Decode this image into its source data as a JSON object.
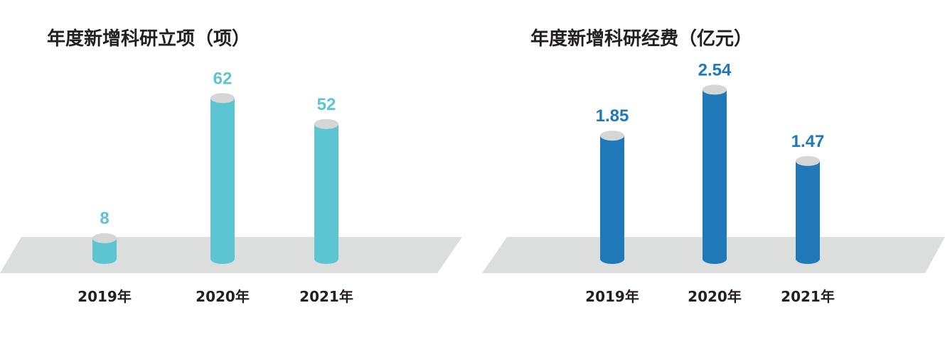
{
  "chart_data": [
    {
      "type": "bar",
      "title": "年度新增科研立项（项）",
      "categories": [
        "2019年",
        "2020年",
        "2021年"
      ],
      "values": [
        8,
        62,
        52
      ],
      "value_labels": [
        "8",
        "62",
        "52"
      ],
      "ylim": [
        0,
        70
      ],
      "grid": false,
      "color": "#5dc4d2"
    },
    {
      "type": "bar",
      "title": "年度新增科研经费（亿元）",
      "categories": [
        "2019年",
        "2020年",
        "2021年"
      ],
      "values": [
        1.85,
        2.54,
        1.47
      ],
      "value_labels": [
        "1.85",
        "2.54",
        "1.47"
      ],
      "ylim": [
        0,
        2.8
      ],
      "grid": false,
      "color": "#1f78b8"
    }
  ],
  "style": {
    "platform_color": "#dcdddd",
    "cap_color": "#d6d6d6"
  }
}
